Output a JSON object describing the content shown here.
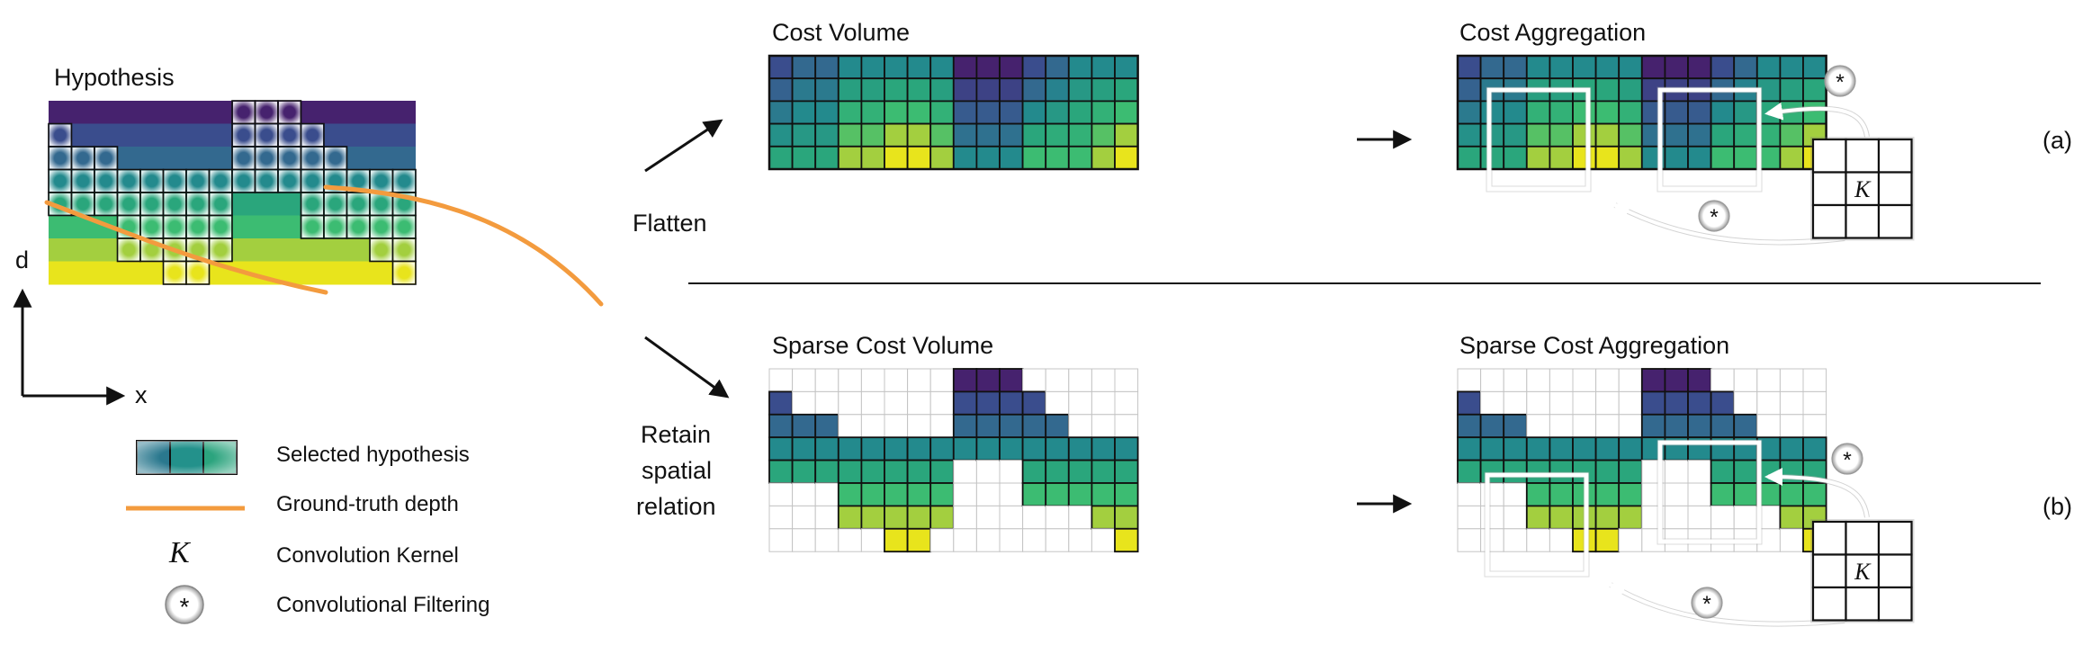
{
  "hypothesis": {
    "title": "Hypothesis",
    "y_axis_label": "d",
    "x_axis_label": "x"
  },
  "legend": {
    "selected": "Selected hypothesis",
    "gt": "Ground-truth depth",
    "kernel_symbol": "K",
    "kernel": "Convolution Kernel",
    "filter_symbol": "*",
    "filtering": "Convolutional Filtering"
  },
  "arrows": {
    "flatten": "Flatten",
    "retain": [
      "Retain",
      "spatial",
      "relation"
    ]
  },
  "top_row": {
    "volume_title": "Cost Volume",
    "aggregation_title": "Cost Aggregation",
    "tag": "(a)"
  },
  "bottom_row": {
    "volume_title": "Sparse Cost Volume",
    "aggregation_title": "Sparse Cost Aggregation",
    "tag": "(b)"
  },
  "colors": {
    "depth_levels": [
      "#46226e",
      "#3a4d8d",
      "#33698f",
      "#238a8d",
      "#2aa67c",
      "#3cbc72",
      "#a3cf3f",
      "#e8e41c"
    ],
    "gt_curve": "#f39b3e",
    "sparse_empty": "#ffffff"
  },
  "grid": {
    "columns": 16,
    "rows": 8,
    "selected_top": [
      1,
      2,
      2,
      3,
      3,
      3,
      3,
      3,
      0,
      0,
      0,
      1,
      2,
      3,
      3,
      3
    ],
    "selected_bottom": [
      4,
      4,
      4,
      6,
      6,
      7,
      7,
      6,
      3,
      3,
      3,
      5,
      5,
      5,
      6,
      7
    ]
  }
}
